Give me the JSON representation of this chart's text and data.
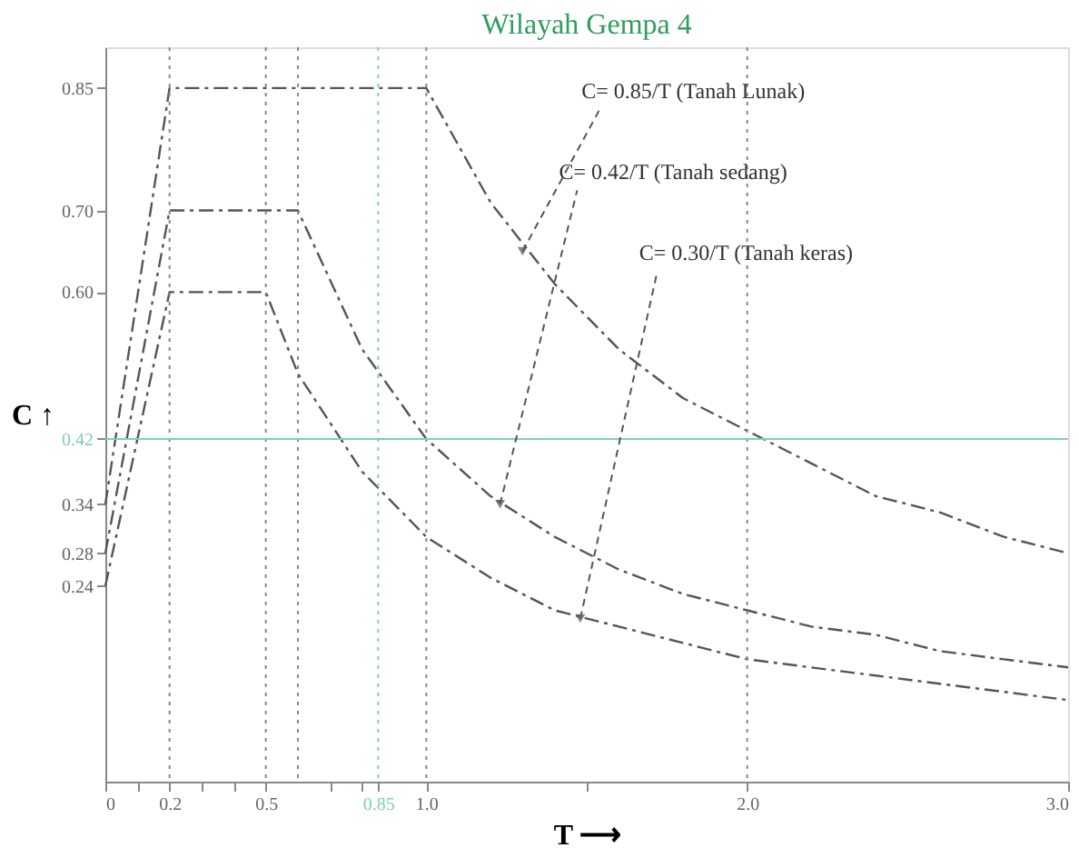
{
  "chart_data": {
    "type": "line",
    "title": "Wilayah Gempa 4",
    "xlabel": "T ⟶",
    "ylabel": "C ↑",
    "xlim": [
      0,
      3.0
    ],
    "ylim": [
      0,
      0.9
    ],
    "xticks": [
      0,
      0.2,
      0.5,
      {
        "value": 0.85,
        "label": "0.85"
      },
      {
        "value": 1.0,
        "label": "1.0"
      },
      {
        "value": 2.0,
        "label": "2.0"
      },
      {
        "value": 3.0,
        "label": "3.0"
      },
      {
        "value": 0.1,
        "label": null
      },
      {
        "value": 0.3,
        "label": null
      },
      {
        "value": 0.4,
        "label": null
      },
      {
        "value": 0.7,
        "label": null
      },
      {
        "value": 0.8,
        "label": null
      },
      {
        "value": 1.5,
        "label": null
      }
    ],
    "yticks": [
      {
        "value": 0.24,
        "label": "0.24"
      },
      {
        "value": 0.28,
        "label": "0.28"
      },
      {
        "value": 0.34,
        "label": "0.34"
      },
      0.42,
      {
        "value": 0.6,
        "label": "0.60"
      },
      {
        "value": 0.7,
        "label": "0.70"
      },
      0.85
    ],
    "series": [
      {
        "color": "#555555",
        "x": [
          0,
          0.2,
          1.0,
          1.2,
          1.4,
          1.6,
          1.8,
          2.0,
          2.2,
          2.4,
          2.6,
          2.8,
          3.0
        ],
        "values": [
          0.34,
          0.85,
          0.85,
          0.71,
          0.61,
          0.53,
          0.47,
          0.43,
          0.39,
          0.35,
          0.33,
          0.3,
          0.28
        ]
      },
      {
        "color": "#555555",
        "x": [
          0,
          0.2,
          0.6,
          0.8,
          1.0,
          1.2,
          1.4,
          1.6,
          1.8,
          2.0,
          2.2,
          2.4,
          2.6,
          2.8,
          3.0
        ],
        "values": [
          0.28,
          0.7,
          0.7,
          0.53,
          0.42,
          0.35,
          0.3,
          0.26,
          0.23,
          0.21,
          0.19,
          0.18,
          0.16,
          0.15,
          0.14
        ]
      },
      {
        "color": "#555555",
        "x": [
          0,
          0.2,
          0.5,
          0.6,
          0.8,
          1.0,
          1.2,
          1.4,
          1.6,
          1.8,
          2.0,
          2.2,
          2.4,
          2.6,
          2.8,
          3.0
        ],
        "values": [
          0.24,
          0.6,
          0.6,
          0.5,
          0.38,
          0.3,
          0.25,
          0.21,
          0.19,
          0.17,
          0.15,
          0.14,
          0.13,
          0.12,
          0.11,
          0.1
        ]
      }
    ],
    "line_style": "dashed",
    "marker": "none",
    "grid": false,
    "ref_lines": [
      {
        "axis": "x",
        "value": 0.2,
        "color": "#888888",
        "line_style": "dotted"
      },
      {
        "axis": "x",
        "value": 0.5,
        "color": "#888888",
        "line_style": "dotted"
      },
      {
        "axis": "x",
        "value": 0.6,
        "color": "#888888",
        "line_style": "dotted"
      },
      {
        "axis": "x",
        "value": 0.85,
        "color": "#7fd0b0",
        "line_style": "dotted"
      },
      {
        "axis": "x",
        "value": 1.0,
        "color": "#888888",
        "line_style": "dotted"
      },
      {
        "axis": "x",
        "value": 2.0,
        "color": "#888888",
        "line_style": "dotted"
      },
      {
        "axis": "y",
        "value": 0.42,
        "color": "#7fd0b0",
        "line_style": "solid"
      }
    ],
    "annotations": [
      {
        "text": "C= 0.85/T (Tanah Lunak)",
        "x": 1.3,
        "y": 0.65
      },
      {
        "text": "C= 0.42/T (Tanah sedang)",
        "x": 1.23,
        "y": 0.34
      },
      {
        "text": "C= 0.30/T (Tanah keras)",
        "x": 1.48,
        "y": 0.2
      }
    ]
  }
}
